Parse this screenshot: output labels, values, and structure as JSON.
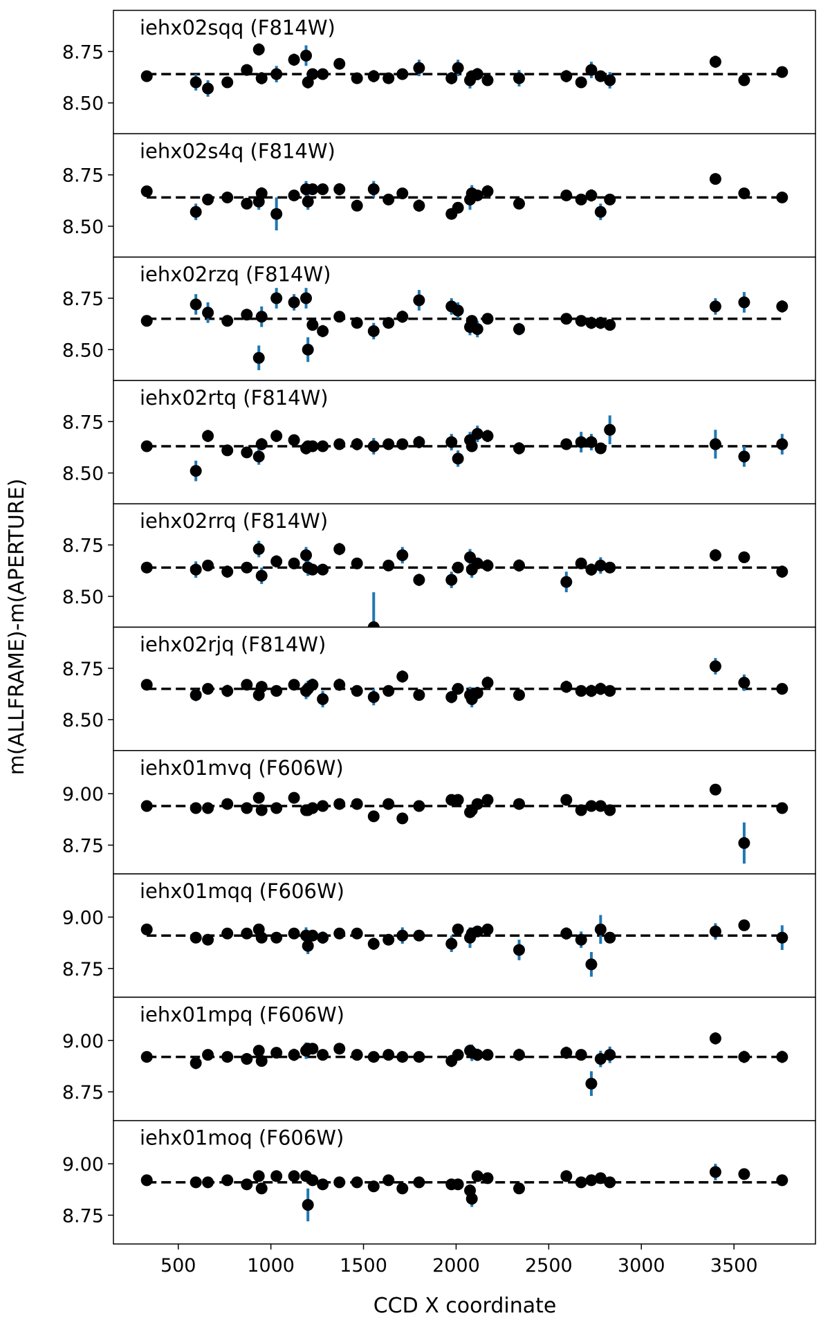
{
  "xlabel": "CCD X coordinate",
  "ylabel": "m(ALLFRAME)-m(APERTURE)",
  "xlim": [
    150,
    3940
  ],
  "xticks": [
    500,
    1000,
    1500,
    2000,
    2500,
    3000,
    3500
  ],
  "chart_data": [
    {
      "type": "scatter",
      "title": "iehx02sqq (F814W)",
      "color": "#000000",
      "error_color": "#1f77b4",
      "reference_line": 8.64,
      "ylim": [
        8.35,
        8.95
      ],
      "yticks": [
        {
          "value": 8.5,
          "label": "8.50"
        },
        8.75
      ],
      "x": [
        330,
        595,
        660,
        765,
        870,
        935,
        950,
        1030,
        1125,
        1190,
        1200,
        1225,
        1280,
        1370,
        1465,
        1555,
        1635,
        1710,
        1800,
        1975,
        2010,
        2075,
        2085,
        2115,
        2170,
        2340,
        2595,
        2675,
        2730,
        2780,
        2830,
        3400,
        3555,
        3760
      ],
      "values": [
        8.63,
        8.6,
        8.57,
        8.6,
        8.66,
        8.76,
        8.62,
        8.64,
        8.71,
        8.73,
        8.6,
        8.64,
        8.64,
        8.69,
        8.62,
        8.63,
        8.62,
        8.64,
        8.67,
        8.62,
        8.67,
        8.61,
        8.63,
        8.64,
        8.61,
        8.62,
        8.63,
        8.6,
        8.66,
        8.63,
        8.61,
        8.7,
        8.61,
        8.65
      ],
      "errors": [
        0.02,
        0.04,
        0.04,
        0.02,
        0.02,
        0.03,
        0.03,
        0.04,
        0.03,
        0.05,
        0.03,
        0.02,
        0.02,
        0.02,
        0.02,
        0.03,
        0.02,
        0.02,
        0.04,
        0.03,
        0.04,
        0.04,
        0.02,
        0.03,
        0.02,
        0.04,
        0.03,
        0.02,
        0.04,
        0.02,
        0.04,
        0.03,
        0.02,
        0.02
      ]
    },
    {
      "type": "scatter",
      "title": "iehx02s4q (F814W)",
      "color": "#000000",
      "error_color": "#1f77b4",
      "reference_line": 8.64,
      "ylim": [
        8.35,
        8.95
      ],
      "yticks": [
        {
          "value": 8.5,
          "label": "8.50"
        },
        8.75
      ],
      "x": [
        330,
        595,
        660,
        765,
        870,
        935,
        950,
        1030,
        1125,
        1190,
        1200,
        1225,
        1280,
        1370,
        1465,
        1555,
        1635,
        1710,
        1800,
        1975,
        2010,
        2075,
        2085,
        2115,
        2170,
        2340,
        2595,
        2675,
        2730,
        2780,
        2830,
        3400,
        3555,
        3760
      ],
      "values": [
        8.67,
        8.57,
        8.63,
        8.64,
        8.61,
        8.62,
        8.66,
        8.56,
        8.65,
        8.68,
        8.62,
        8.68,
        8.68,
        8.68,
        8.6,
        8.68,
        8.63,
        8.66,
        8.6,
        8.56,
        8.59,
        8.63,
        8.66,
        8.65,
        8.67,
        8.61,
        8.65,
        8.63,
        8.65,
        8.57,
        8.63,
        8.73,
        8.66,
        8.64
      ],
      "errors": [
        0.02,
        0.04,
        0.02,
        0.02,
        0.02,
        0.04,
        0.03,
        0.08,
        0.02,
        0.04,
        0.04,
        0.02,
        0.02,
        0.03,
        0.02,
        0.04,
        0.02,
        0.02,
        0.03,
        0.02,
        0.02,
        0.05,
        0.04,
        0.02,
        0.03,
        0.02,
        0.02,
        0.02,
        0.03,
        0.04,
        0.02,
        0.02,
        0.02,
        0.02
      ]
    },
    {
      "type": "scatter",
      "title": "iehx02rzq (F814W)",
      "color": "#000000",
      "error_color": "#1f77b4",
      "reference_line": 8.65,
      "ylim": [
        8.35,
        8.95
      ],
      "yticks": [
        {
          "value": 8.5,
          "label": "8.50"
        },
        8.75
      ],
      "x": [
        330,
        595,
        660,
        765,
        870,
        935,
        950,
        1030,
        1125,
        1190,
        1200,
        1225,
        1280,
        1370,
        1465,
        1555,
        1635,
        1710,
        1800,
        1975,
        2010,
        2075,
        2085,
        2115,
        2170,
        2340,
        2595,
        2675,
        2730,
        2780,
        2830,
        3400,
        3555,
        3760
      ],
      "values": [
        8.64,
        8.72,
        8.68,
        8.64,
        8.67,
        8.46,
        8.66,
        8.75,
        8.73,
        8.75,
        8.5,
        8.62,
        8.59,
        8.66,
        8.63,
        8.59,
        8.63,
        8.66,
        8.74,
        8.71,
        8.69,
        8.61,
        8.64,
        8.6,
        8.65,
        8.6,
        8.65,
        8.64,
        8.63,
        8.63,
        8.62,
        8.71,
        8.73,
        8.71
      ],
      "errors": [
        0.02,
        0.05,
        0.05,
        0.02,
        0.02,
        0.06,
        0.05,
        0.05,
        0.04,
        0.05,
        0.06,
        0.02,
        0.03,
        0.02,
        0.02,
        0.04,
        0.02,
        0.03,
        0.05,
        0.04,
        0.04,
        0.04,
        0.02,
        0.04,
        0.02,
        0.03,
        0.02,
        0.02,
        0.03,
        0.03,
        0.02,
        0.04,
        0.05,
        0.03
      ]
    },
    {
      "type": "scatter",
      "title": "iehx02rtq (F814W)",
      "color": "#000000",
      "error_color": "#1f77b4",
      "reference_line": 8.63,
      "ylim": [
        8.35,
        8.95
      ],
      "yticks": [
        {
          "value": 8.5,
          "label": "8.50"
        },
        8.75
      ],
      "x": [
        330,
        595,
        660,
        765,
        870,
        935,
        950,
        1030,
        1125,
        1190,
        1200,
        1225,
        1280,
        1370,
        1465,
        1555,
        1635,
        1710,
        1800,
        1975,
        2010,
        2075,
        2085,
        2115,
        2170,
        2340,
        2595,
        2675,
        2730,
        2780,
        2830,
        3400,
        3555,
        3760
      ],
      "values": [
        8.63,
        8.51,
        8.68,
        8.61,
        8.6,
        8.58,
        8.64,
        8.68,
        8.66,
        8.62,
        8.63,
        8.63,
        8.63,
        8.64,
        8.64,
        8.63,
        8.64,
        8.64,
        8.65,
        8.65,
        8.57,
        8.66,
        8.63,
        8.69,
        8.68,
        8.62,
        8.64,
        8.65,
        8.65,
        8.62,
        8.71,
        8.64,
        8.58,
        8.64
      ],
      "errors": [
        0.02,
        0.05,
        0.03,
        0.02,
        0.02,
        0.04,
        0.03,
        0.03,
        0.02,
        0.03,
        0.02,
        0.02,
        0.02,
        0.02,
        0.03,
        0.04,
        0.02,
        0.02,
        0.03,
        0.04,
        0.04,
        0.04,
        0.02,
        0.04,
        0.03,
        0.03,
        0.02,
        0.05,
        0.04,
        0.02,
        0.07,
        0.07,
        0.05,
        0.05
      ]
    },
    {
      "type": "scatter",
      "title": "iehx02rrq (F814W)",
      "color": "#000000",
      "error_color": "#1f77b4",
      "reference_line": 8.64,
      "ylim": [
        8.35,
        8.95
      ],
      "yticks": [
        {
          "value": 8.5,
          "label": "8.50"
        },
        8.75
      ],
      "x": [
        330,
        595,
        660,
        765,
        870,
        935,
        950,
        1030,
        1125,
        1190,
        1200,
        1225,
        1280,
        1370,
        1465,
        1555,
        1635,
        1710,
        1800,
        1975,
        2010,
        2075,
        2085,
        2115,
        2170,
        2340,
        2595,
        2675,
        2730,
        2780,
        2830,
        3400,
        3555,
        3760
      ],
      "values": [
        8.64,
        8.63,
        8.65,
        8.62,
        8.64,
        8.73,
        8.6,
        8.67,
        8.66,
        8.7,
        8.64,
        8.63,
        8.63,
        8.73,
        8.66,
        8.35,
        8.65,
        8.7,
        8.58,
        8.58,
        8.64,
        8.69,
        8.63,
        8.66,
        8.65,
        8.65,
        8.57,
        8.66,
        8.63,
        8.65,
        8.64,
        8.7,
        8.69,
        8.62
      ],
      "errors": [
        0.02,
        0.04,
        0.02,
        0.03,
        0.02,
        0.04,
        0.04,
        0.03,
        0.02,
        0.04,
        0.04,
        0.02,
        0.02,
        0.03,
        0.02,
        0.17,
        0.02,
        0.04,
        0.03,
        0.04,
        0.02,
        0.04,
        0.04,
        0.02,
        0.03,
        0.03,
        0.05,
        0.02,
        0.03,
        0.04,
        0.02,
        0.03,
        0.02,
        0.03
      ]
    },
    {
      "type": "scatter",
      "title": "iehx02rjq (F814W)",
      "color": "#000000",
      "error_color": "#1f77b4",
      "reference_line": 8.65,
      "ylim": [
        8.35,
        8.95
      ],
      "yticks": [
        {
          "value": 8.5,
          "label": "8.50"
        },
        8.75
      ],
      "x": [
        330,
        595,
        660,
        765,
        870,
        935,
        950,
        1030,
        1125,
        1190,
        1200,
        1225,
        1280,
        1370,
        1465,
        1555,
        1635,
        1710,
        1800,
        1975,
        2010,
        2075,
        2085,
        2115,
        2170,
        2340,
        2595,
        2675,
        2730,
        2780,
        2830,
        3400,
        3555,
        3760
      ],
      "values": [
        8.67,
        8.62,
        8.65,
        8.64,
        8.67,
        8.62,
        8.66,
        8.64,
        8.67,
        8.64,
        8.65,
        8.67,
        8.6,
        8.67,
        8.64,
        8.61,
        8.64,
        8.71,
        8.62,
        8.61,
        8.65,
        8.62,
        8.6,
        8.63,
        8.68,
        8.62,
        8.66,
        8.64,
        8.64,
        8.65,
        8.64,
        8.76,
        8.68,
        8.65
      ],
      "errors": [
        0.02,
        0.03,
        0.02,
        0.03,
        0.02,
        0.03,
        0.02,
        0.02,
        0.02,
        0.04,
        0.04,
        0.03,
        0.04,
        0.03,
        0.02,
        0.04,
        0.02,
        0.03,
        0.02,
        0.03,
        0.02,
        0.04,
        0.04,
        0.03,
        0.03,
        0.02,
        0.03,
        0.02,
        0.03,
        0.03,
        0.02,
        0.04,
        0.04,
        0.02
      ]
    },
    {
      "type": "scatter",
      "title": "iehx01mvq (F606W)",
      "color": "#000000",
      "error_color": "#1f77b4",
      "reference_line": 8.94,
      "ylim": [
        8.61,
        9.21
      ],
      "yticks": [
        8.75,
        {
          "value": 9,
          "label": "9.00"
        }
      ],
      "x": [
        330,
        595,
        660,
        765,
        870,
        935,
        950,
        1030,
        1125,
        1190,
        1200,
        1225,
        1280,
        1370,
        1465,
        1555,
        1635,
        1710,
        1800,
        1975,
        2010,
        2075,
        2085,
        2115,
        2170,
        2340,
        2595,
        2675,
        2730,
        2780,
        2830,
        3400,
        3555,
        3760
      ],
      "values": [
        8.94,
        8.93,
        8.93,
        8.95,
        8.93,
        8.98,
        8.92,
        8.93,
        8.98,
        8.92,
        8.92,
        8.93,
        8.94,
        8.95,
        8.95,
        8.89,
        8.95,
        8.88,
        8.94,
        8.97,
        8.97,
        8.91,
        8.92,
        8.95,
        8.97,
        8.95,
        8.97,
        8.92,
        8.94,
        8.94,
        8.92,
        9.02,
        8.76,
        8.93
      ],
      "errors": [
        0.02,
        0.02,
        0.02,
        0.02,
        0.02,
        0.02,
        0.02,
        0.02,
        0.02,
        0.02,
        0.02,
        0.02,
        0.02,
        0.02,
        0.02,
        0.02,
        0.02,
        0.02,
        0.02,
        0.02,
        0.02,
        0.02,
        0.02,
        0.02,
        0.02,
        0.02,
        0.02,
        0.02,
        0.02,
        0.02,
        0.02,
        0.02,
        0.1,
        0.02
      ]
    },
    {
      "type": "scatter",
      "title": "iehx01mqq (F606W)",
      "color": "#000000",
      "error_color": "#1f77b4",
      "reference_line": 8.91,
      "ylim": [
        8.61,
        9.21
      ],
      "yticks": [
        8.75,
        {
          "value": 9,
          "label": "9.00"
        }
      ],
      "x": [
        330,
        595,
        660,
        765,
        870,
        935,
        950,
        1030,
        1125,
        1190,
        1200,
        1225,
        1280,
        1370,
        1465,
        1555,
        1635,
        1710,
        1800,
        1975,
        2010,
        2075,
        2085,
        2115,
        2170,
        2340,
        2595,
        2675,
        2730,
        2780,
        2830,
        3400,
        3555,
        3760
      ],
      "values": [
        8.94,
        8.9,
        8.89,
        8.92,
        8.92,
        8.94,
        8.9,
        8.9,
        8.92,
        8.91,
        8.86,
        8.91,
        8.9,
        8.92,
        8.92,
        8.87,
        8.89,
        8.91,
        8.91,
        8.87,
        8.94,
        8.9,
        8.92,
        8.93,
        8.94,
        8.84,
        8.92,
        8.89,
        8.77,
        8.94,
        8.9,
        8.93,
        8.96,
        8.9
      ],
      "errors": [
        0.02,
        0.02,
        0.02,
        0.02,
        0.02,
        0.02,
        0.02,
        0.02,
        0.02,
        0.04,
        0.04,
        0.02,
        0.03,
        0.02,
        0.02,
        0.03,
        0.02,
        0.04,
        0.02,
        0.04,
        0.02,
        0.05,
        0.02,
        0.02,
        0.02,
        0.05,
        0.03,
        0.04,
        0.06,
        0.07,
        0.02,
        0.04,
        0.02,
        0.06
      ]
    },
    {
      "type": "scatter",
      "title": "iehx01mpq (F606W)",
      "color": "#000000",
      "error_color": "#1f77b4",
      "reference_line": 8.92,
      "ylim": [
        8.61,
        9.21
      ],
      "yticks": [
        8.75,
        {
          "value": 9,
          "label": "9.00"
        }
      ],
      "x": [
        330,
        595,
        660,
        765,
        870,
        935,
        950,
        1030,
        1125,
        1190,
        1200,
        1225,
        1280,
        1370,
        1465,
        1555,
        1635,
        1710,
        1800,
        1975,
        2010,
        2075,
        2085,
        2115,
        2170,
        2340,
        2595,
        2675,
        2730,
        2780,
        2830,
        3400,
        3555,
        3760
      ],
      "values": [
        8.92,
        8.89,
        8.93,
        8.92,
        8.91,
        8.95,
        8.9,
        8.94,
        8.93,
        8.95,
        8.96,
        8.96,
        8.93,
        8.96,
        8.93,
        8.92,
        8.93,
        8.92,
        8.92,
        8.9,
        8.93,
        8.95,
        8.94,
        8.93,
        8.93,
        8.93,
        8.94,
        8.93,
        8.79,
        8.91,
        8.93,
        9.01,
        8.92,
        8.92
      ],
      "errors": [
        0.02,
        0.03,
        0.02,
        0.02,
        0.02,
        0.02,
        0.02,
        0.02,
        0.03,
        0.04,
        0.02,
        0.02,
        0.02,
        0.02,
        0.02,
        0.02,
        0.02,
        0.02,
        0.02,
        0.03,
        0.02,
        0.03,
        0.04,
        0.03,
        0.02,
        0.03,
        0.03,
        0.02,
        0.06,
        0.04,
        0.04,
        0.03,
        0.03,
        0.03
      ]
    },
    {
      "type": "scatter",
      "title": "iehx01moq (F606W)",
      "color": "#000000",
      "error_color": "#1f77b4",
      "reference_line": 8.91,
      "ylim": [
        8.61,
        9.21
      ],
      "yticks": [
        8.75,
        {
          "value": 9,
          "label": "9.00"
        }
      ],
      "x": [
        330,
        595,
        660,
        765,
        870,
        935,
        950,
        1030,
        1125,
        1190,
        1200,
        1225,
        1280,
        1370,
        1465,
        1555,
        1635,
        1710,
        1800,
        1975,
        2010,
        2075,
        2085,
        2115,
        2170,
        2340,
        2595,
        2675,
        2730,
        2780,
        2830,
        3400,
        3555,
        3760
      ],
      "values": [
        8.92,
        8.91,
        8.91,
        8.92,
        8.9,
        8.94,
        8.88,
        8.94,
        8.94,
        8.94,
        8.8,
        8.92,
        8.9,
        8.91,
        8.91,
        8.89,
        8.92,
        8.88,
        8.91,
        8.9,
        8.9,
        8.87,
        8.83,
        8.94,
        8.93,
        8.88,
        8.94,
        8.91,
        8.92,
        8.93,
        8.91,
        8.96,
        8.95,
        8.92
      ],
      "errors": [
        0.02,
        0.02,
        0.02,
        0.02,
        0.02,
        0.02,
        0.02,
        0.02,
        0.02,
        0.02,
        0.08,
        0.02,
        0.02,
        0.02,
        0.02,
        0.02,
        0.02,
        0.02,
        0.02,
        0.02,
        0.02,
        0.03,
        0.04,
        0.02,
        0.02,
        0.02,
        0.02,
        0.02,
        0.02,
        0.02,
        0.02,
        0.04,
        0.02,
        0.02
      ]
    }
  ]
}
